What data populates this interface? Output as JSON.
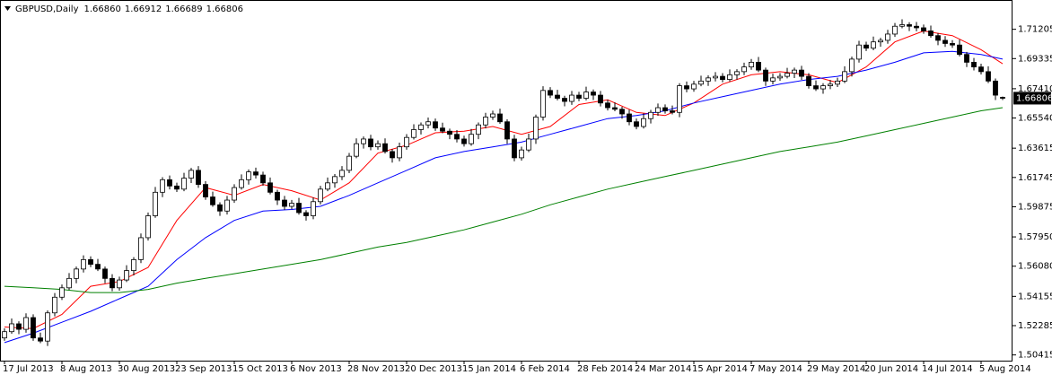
{
  "header": {
    "title": "GBPUSD,Daily",
    "ohlc": [
      "1.66860",
      "1.66912",
      "1.66689",
      "1.66806"
    ]
  },
  "chart_data": {
    "type": "candlestick",
    "categories": [
      "17 Jul 2013",
      null,
      null,
      null,
      null,
      null,
      null,
      null,
      "8 Aug 2013",
      null,
      null,
      null,
      null,
      null,
      null,
      null,
      "30 Aug 2013",
      null,
      null,
      null,
      null,
      null,
      null,
      null,
      "23 Sep 2013",
      null,
      null,
      null,
      null,
      null,
      null,
      null,
      "15 Oct 2013",
      null,
      null,
      null,
      null,
      null,
      null,
      null,
      "6 Nov 2013",
      null,
      null,
      null,
      null,
      null,
      null,
      null,
      "28 Nov 2013",
      null,
      null,
      null,
      null,
      null,
      null,
      null,
      "20 Dec 2013",
      null,
      null,
      null,
      null,
      null,
      null,
      null,
      "15 Jan 2014",
      null,
      null,
      null,
      null,
      null,
      null,
      null,
      "6 Feb 2014",
      null,
      null,
      null,
      null,
      null,
      null,
      null,
      "28 Feb 2014",
      null,
      null,
      null,
      null,
      null,
      null,
      null,
      "24 Mar 2014",
      null,
      null,
      null,
      null,
      null,
      null,
      null,
      "15 Apr 2014",
      null,
      null,
      null,
      null,
      null,
      null,
      null,
      "7 May 2014",
      null,
      null,
      null,
      null,
      null,
      null,
      null,
      "29 May 2014",
      null,
      null,
      null,
      null,
      null,
      null,
      null,
      "20 Jun 2014",
      null,
      null,
      null,
      null,
      null,
      null,
      null,
      "14 Jul 2014",
      null,
      null,
      null,
      null,
      null,
      null,
      null,
      "5 Aug 2014",
      null,
      null,
      null
    ],
    "open": [
      1.515,
      1.519,
      1.524,
      1.5205,
      1.528,
      1.515,
      1.513,
      1.531,
      1.541,
      1.547,
      1.553,
      1.559,
      1.565,
      1.562,
      1.559,
      1.553,
      1.547,
      1.552,
      1.558,
      1.565,
      1.579,
      1.593,
      1.608,
      1.616,
      1.612,
      1.61,
      1.617,
      1.622,
      1.613,
      1.605,
      1.6,
      1.596,
      1.603,
      1.611,
      1.616,
      1.621,
      1.619,
      1.614,
      1.608,
      1.603,
      1.599,
      1.601,
      1.595,
      1.593,
      1.602,
      1.61,
      1.614,
      1.618,
      1.622,
      1.631,
      1.639,
      1.642,
      1.637,
      1.639,
      1.634,
      1.63,
      1.637,
      1.643,
      1.648,
      1.651,
      1.653,
      1.649,
      1.647,
      1.645,
      1.642,
      1.639,
      1.645,
      1.651,
      1.656,
      1.658,
      1.653,
      1.642,
      1.63,
      1.635,
      1.642,
      1.656,
      1.673,
      1.67,
      1.668,
      1.666,
      1.67,
      1.668,
      1.672,
      1.67,
      1.665,
      1.662,
      1.661,
      1.658,
      1.653,
      1.65,
      1.655,
      1.659,
      1.662,
      1.66,
      1.659,
      1.676,
      1.674,
      1.677,
      1.679,
      1.681,
      1.682,
      1.68,
      1.683,
      1.685,
      1.688,
      1.691,
      1.686,
      1.679,
      1.681,
      1.682,
      1.684,
      1.686,
      1.682,
      1.676,
      1.674,
      1.676,
      1.677,
      1.679,
      1.685,
      1.693,
      1.702,
      1.7,
      1.704,
      1.705,
      1.709,
      1.714,
      1.715,
      1.714,
      1.713,
      1.711,
      1.708,
      1.705,
      1.703,
      1.702,
      1.696,
      1.691,
      1.688,
      1.685,
      1.679,
      1.6686
    ],
    "high": [
      1.5211,
      1.5274,
      1.5256,
      1.5307,
      1.5301,
      1.5184,
      1.5326,
      1.5437,
      1.5491,
      1.5564,
      1.5606,
      1.5677,
      1.5671,
      1.5654,
      1.5606,
      1.5557,
      1.5541,
      1.5614,
      1.5666,
      1.5817,
      1.5951,
      1.6114,
      1.6176,
      1.6187,
      1.6141,
      1.6204,
      1.6236,
      1.6247,
      1.6151,
      1.6084,
      1.6016,
      1.6057,
      1.6131,
      1.6194,
      1.6226,
      1.6237,
      1.6211,
      1.6174,
      1.6096,
      1.6057,
      1.6031,
      1.6044,
      1.5966,
      1.6047,
      1.6121,
      1.6174,
      1.6196,
      1.6247,
      1.6331,
      1.6424,
      1.6436,
      1.6447,
      1.6411,
      1.6424,
      1.6356,
      1.6397,
      1.6451,
      1.6514,
      1.6526,
      1.6557,
      1.6551,
      1.6524,
      1.6486,
      1.6477,
      1.6441,
      1.6484,
      1.6526,
      1.6587,
      1.6601,
      1.6614,
      1.6546,
      1.6447,
      1.6371,
      1.6454,
      1.6576,
      1.6757,
      1.6751,
      1.6734,
      1.6696,
      1.6727,
      1.6721,
      1.6754,
      1.6736,
      1.6727,
      1.6671,
      1.6654,
      1.6626,
      1.6607,
      1.6551,
      1.6584,
      1.6606,
      1.6647,
      1.6641,
      1.6634,
      1.6776,
      1.6787,
      1.6791,
      1.6824,
      1.6826,
      1.6847,
      1.6841,
      1.6864,
      1.6866,
      1.6907,
      1.6931,
      1.6944,
      1.6876,
      1.6837,
      1.6841,
      1.6874,
      1.6876,
      1.6887,
      1.6841,
      1.6794,
      1.6776,
      1.6797,
      1.6811,
      1.6884,
      1.6946,
      1.7047,
      1.7041,
      1.7074,
      1.7066,
      1.7117,
      1.7161,
      1.7184,
      1.7166,
      1.7167,
      1.7151,
      1.7144,
      1.7096,
      1.7077,
      1.7051,
      1.7054,
      1.6976,
      1.6937,
      1.6901,
      1.6884,
      1.6806,
      1.66912
    ],
    "low": [
      1.5132,
      1.5177,
      1.5174,
      1.5183,
      1.5132,
      1.5117,
      1.5099,
      1.5288,
      1.5392,
      1.5457,
      1.5499,
      1.5568,
      1.5602,
      1.5577,
      1.5499,
      1.5448,
      1.5452,
      1.5507,
      1.5549,
      1.5628,
      1.5772,
      1.5917,
      1.6049,
      1.6098,
      1.6082,
      1.6087,
      1.6139,
      1.6108,
      1.6032,
      1.5987,
      1.5929,
      1.5938,
      1.6012,
      1.6097,
      1.6129,
      1.6168,
      1.6122,
      1.6067,
      1.5999,
      1.5968,
      1.5972,
      1.5937,
      1.5899,
      1.5908,
      1.6002,
      1.6087,
      1.6109,
      1.6158,
      1.6202,
      1.6297,
      1.6359,
      1.6348,
      1.6352,
      1.6327,
      1.6269,
      1.6278,
      1.6352,
      1.6417,
      1.6449,
      1.6488,
      1.6472,
      1.6457,
      1.6419,
      1.6398,
      1.6372,
      1.6377,
      1.6419,
      1.6488,
      1.6542,
      1.6517,
      1.6389,
      1.6278,
      1.6282,
      1.6337,
      1.6389,
      1.6538,
      1.6682,
      1.6667,
      1.6629,
      1.6638,
      1.6662,
      1.6667,
      1.6669,
      1.6628,
      1.6602,
      1.6597,
      1.6549,
      1.6508,
      1.6482,
      1.6487,
      1.6519,
      1.6568,
      1.6582,
      1.6577,
      1.6559,
      1.6718,
      1.6722,
      1.6757,
      1.6759,
      1.6788,
      1.6782,
      1.6787,
      1.6799,
      1.6828,
      1.6862,
      1.6847,
      1.6759,
      1.6768,
      1.6792,
      1.6807,
      1.6809,
      1.6798,
      1.6742,
      1.6727,
      1.6709,
      1.6738,
      1.6752,
      1.6777,
      1.6819,
      1.6908,
      1.6982,
      1.6987,
      1.7009,
      1.7028,
      1.7072,
      1.7127,
      1.7109,
      1.7108,
      1.7092,
      1.7067,
      1.7019,
      1.7008,
      1.7002,
      1.6947,
      1.6879,
      1.6858,
      1.6832,
      1.6777,
      1.6669,
      1.66689
    ],
    "close": [
      1.519,
      1.524,
      1.5205,
      1.528,
      1.515,
      1.513,
      1.531,
      1.541,
      1.547,
      1.553,
      1.559,
      1.565,
      1.562,
      1.559,
      1.553,
      1.547,
      1.552,
      1.558,
      1.565,
      1.579,
      1.593,
      1.608,
      1.616,
      1.612,
      1.61,
      1.617,
      1.622,
      1.613,
      1.605,
      1.6,
      1.596,
      1.603,
      1.611,
      1.616,
      1.621,
      1.619,
      1.614,
      1.608,
      1.603,
      1.599,
      1.601,
      1.595,
      1.593,
      1.602,
      1.61,
      1.614,
      1.618,
      1.622,
      1.631,
      1.639,
      1.642,
      1.637,
      1.639,
      1.634,
      1.63,
      1.637,
      1.643,
      1.648,
      1.651,
      1.653,
      1.649,
      1.647,
      1.645,
      1.642,
      1.639,
      1.645,
      1.651,
      1.656,
      1.658,
      1.653,
      1.642,
      1.63,
      1.635,
      1.642,
      1.656,
      1.673,
      1.67,
      1.668,
      1.666,
      1.67,
      1.668,
      1.672,
      1.67,
      1.665,
      1.662,
      1.661,
      1.658,
      1.653,
      1.65,
      1.655,
      1.659,
      1.662,
      1.66,
      1.659,
      1.676,
      1.674,
      1.677,
      1.679,
      1.681,
      1.682,
      1.68,
      1.683,
      1.685,
      1.688,
      1.691,
      1.686,
      1.679,
      1.681,
      1.682,
      1.684,
      1.686,
      1.682,
      1.676,
      1.674,
      1.676,
      1.677,
      1.679,
      1.685,
      1.693,
      1.702,
      1.7,
      1.704,
      1.705,
      1.709,
      1.714,
      1.715,
      1.714,
      1.713,
      1.711,
      1.708,
      1.705,
      1.703,
      1.702,
      1.696,
      1.691,
      1.688,
      1.685,
      1.679,
      1.67,
      1.66806
    ],
    "lines": [
      {
        "color": "#ff0000",
        "x": [
          0,
          4,
          8,
          12,
          16,
          20,
          24,
          28,
          32,
          36,
          40,
          44,
          48,
          52,
          56,
          60,
          64,
          68,
          72,
          76,
          80,
          84,
          88,
          92,
          96,
          100,
          104,
          108,
          112,
          116,
          120,
          124,
          128,
          132,
          136,
          139
        ],
        "values": [
          1.522,
          1.521,
          1.53,
          1.548,
          1.551,
          1.56,
          1.59,
          1.611,
          1.606,
          1.613,
          1.609,
          1.603,
          1.614,
          1.633,
          1.638,
          1.646,
          1.647,
          1.65,
          1.645,
          1.65,
          1.664,
          1.667,
          1.659,
          1.657,
          1.665,
          1.677,
          1.683,
          1.685,
          1.683,
          1.678,
          1.688,
          1.704,
          1.711,
          1.708,
          1.699,
          1.69
        ]
      },
      {
        "color": "#0000ff",
        "x": [
          0,
          4,
          8,
          12,
          16,
          20,
          24,
          28,
          32,
          36,
          40,
          44,
          48,
          52,
          56,
          60,
          64,
          68,
          72,
          76,
          80,
          84,
          88,
          92,
          96,
          100,
          104,
          108,
          112,
          116,
          120,
          124,
          128,
          132,
          136,
          139
        ],
        "values": [
          1.512,
          1.518,
          1.525,
          1.532,
          1.54,
          1.548,
          1.565,
          1.579,
          1.59,
          1.596,
          1.597,
          1.599,
          1.606,
          1.614,
          1.622,
          1.63,
          1.634,
          1.637,
          1.64,
          1.645,
          1.65,
          1.655,
          1.657,
          1.66,
          1.665,
          1.669,
          1.673,
          1.677,
          1.68,
          1.682,
          1.686,
          1.691,
          1.697,
          1.698,
          1.696,
          1.693
        ]
      },
      {
        "color": "#008000",
        "x": [
          0,
          4,
          8,
          12,
          16,
          20,
          24,
          28,
          32,
          36,
          40,
          44,
          48,
          52,
          56,
          60,
          64,
          68,
          72,
          76,
          80,
          84,
          88,
          92,
          96,
          100,
          104,
          108,
          112,
          116,
          120,
          124,
          128,
          132,
          136,
          139
        ],
        "values": [
          1.548,
          1.547,
          1.546,
          1.544,
          1.544,
          1.546,
          1.55,
          1.553,
          1.556,
          1.559,
          1.562,
          1.565,
          1.569,
          1.573,
          1.576,
          1.58,
          1.584,
          1.589,
          1.594,
          1.6,
          1.605,
          1.61,
          1.614,
          1.618,
          1.622,
          1.626,
          1.63,
          1.634,
          1.637,
          1.64,
          1.644,
          1.648,
          1.652,
          1.656,
          1.66,
          1.662
        ]
      }
    ],
    "ylim": [
      1.5005,
      1.7296
    ],
    "yticks": [
      1.71205,
      1.69335,
      {
        "value": 1.6741,
        "label": "1.67410"
      },
      {
        "value": 1.6554,
        "label": "1.65540"
      },
      1.63615,
      1.61745,
      1.59875,
      {
        "value": 1.5795,
        "label": "1.57950"
      },
      {
        "value": 1.5608,
        "label": "1.56080"
      },
      1.54155,
      1.52285,
      1.50415
    ],
    "bull_color": "#ffffff",
    "bear_color": "#000000",
    "wick_color": "#000000"
  }
}
